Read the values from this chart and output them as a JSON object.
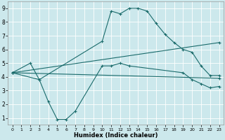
{
  "xlabel": "Humidex (Indice chaleur)",
  "bg_color": "#cce8ec",
  "grid_color": "#ffffff",
  "line_color": "#1a6b6b",
  "xlim": [
    -0.5,
    23.5
  ],
  "ylim": [
    0.5,
    9.5
  ],
  "xticks": [
    0,
    1,
    2,
    3,
    4,
    5,
    6,
    7,
    8,
    9,
    10,
    11,
    12,
    13,
    14,
    15,
    16,
    17,
    18,
    19,
    20,
    21,
    22,
    23
  ],
  "yticks": [
    1,
    2,
    3,
    4,
    5,
    6,
    7,
    8,
    9
  ],
  "lines": [
    {
      "x": [
        0,
        2,
        3,
        10,
        11,
        12,
        13,
        14,
        15,
        16,
        17,
        18,
        19,
        20,
        21,
        22,
        23
      ],
      "y": [
        4.3,
        5.0,
        3.8,
        6.6,
        8.8,
        8.6,
        9.0,
        9.0,
        8.8,
        7.9,
        7.1,
        6.5,
        6.0,
        5.8,
        4.8,
        4.1,
        4.1
      ]
    },
    {
      "x": [
        0,
        3,
        4,
        5,
        6,
        7,
        10,
        11,
        12,
        13,
        19,
        20,
        21,
        22,
        23
      ],
      "y": [
        4.3,
        3.8,
        2.2,
        0.9,
        0.9,
        1.5,
        4.8,
        4.8,
        5.0,
        4.8,
        4.3,
        3.8,
        3.5,
        3.2,
        3.3
      ]
    },
    {
      "x": [
        0,
        23
      ],
      "y": [
        4.3,
        6.5
      ]
    },
    {
      "x": [
        0,
        23
      ],
      "y": [
        4.3,
        3.9
      ]
    }
  ]
}
